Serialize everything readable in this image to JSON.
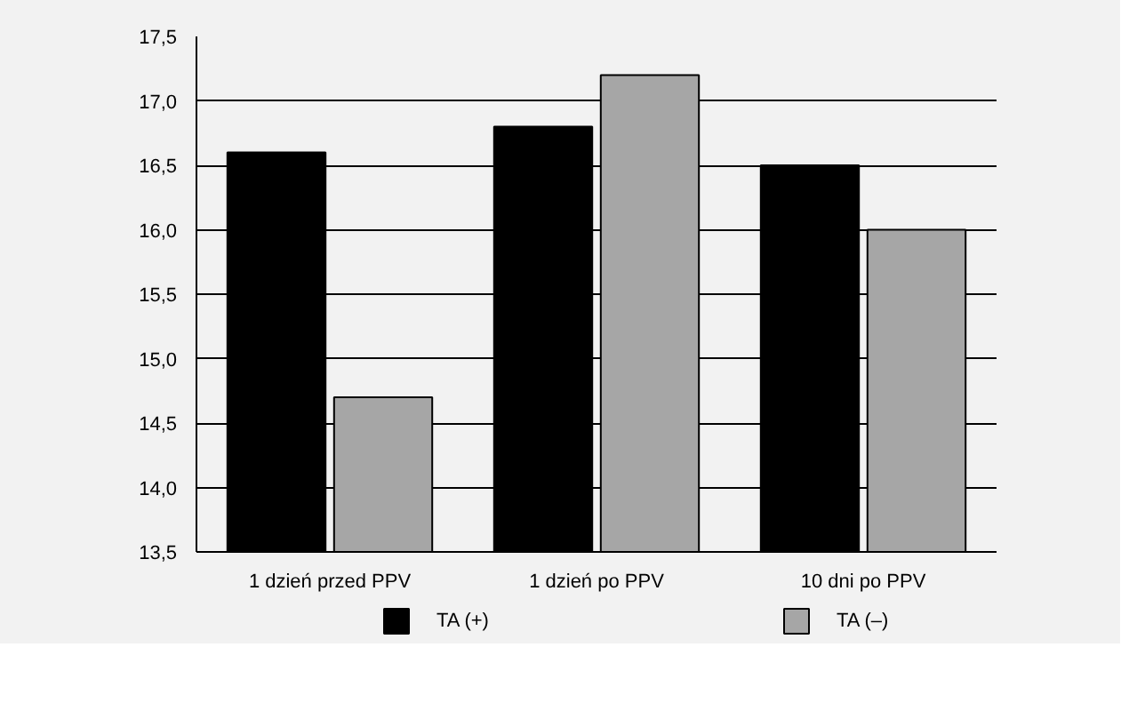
{
  "chart_data": {
    "type": "bar",
    "categories": [
      "1 dzień przed PPV",
      "1 dzień po PPV",
      "10 dni po PPV"
    ],
    "series": [
      {
        "name": "TA (+)",
        "color": "#000000",
        "values": [
          16.6,
          16.8,
          16.5
        ]
      },
      {
        "name": "TA (–)",
        "color": "#a6a6a6",
        "values": [
          14.7,
          17.2,
          16.0
        ]
      }
    ],
    "ylim": [
      13.5,
      17.5
    ],
    "yticks": [
      {
        "value": 13.5,
        "label": "13,5"
      },
      {
        "value": 14.0,
        "label": "14,0"
      },
      {
        "value": 14.5,
        "label": "14,5"
      },
      {
        "value": 15.0,
        "label": "15,0"
      },
      {
        "value": 15.5,
        "label": "15,5"
      },
      {
        "value": 16.0,
        "label": "16,0"
      },
      {
        "value": 16.5,
        "label": "16,5"
      },
      {
        "value": 17.0,
        "label": "17,0"
      },
      {
        "value": 17.5,
        "label": "17,5"
      }
    ],
    "grid": "y",
    "legend": "bottom"
  }
}
